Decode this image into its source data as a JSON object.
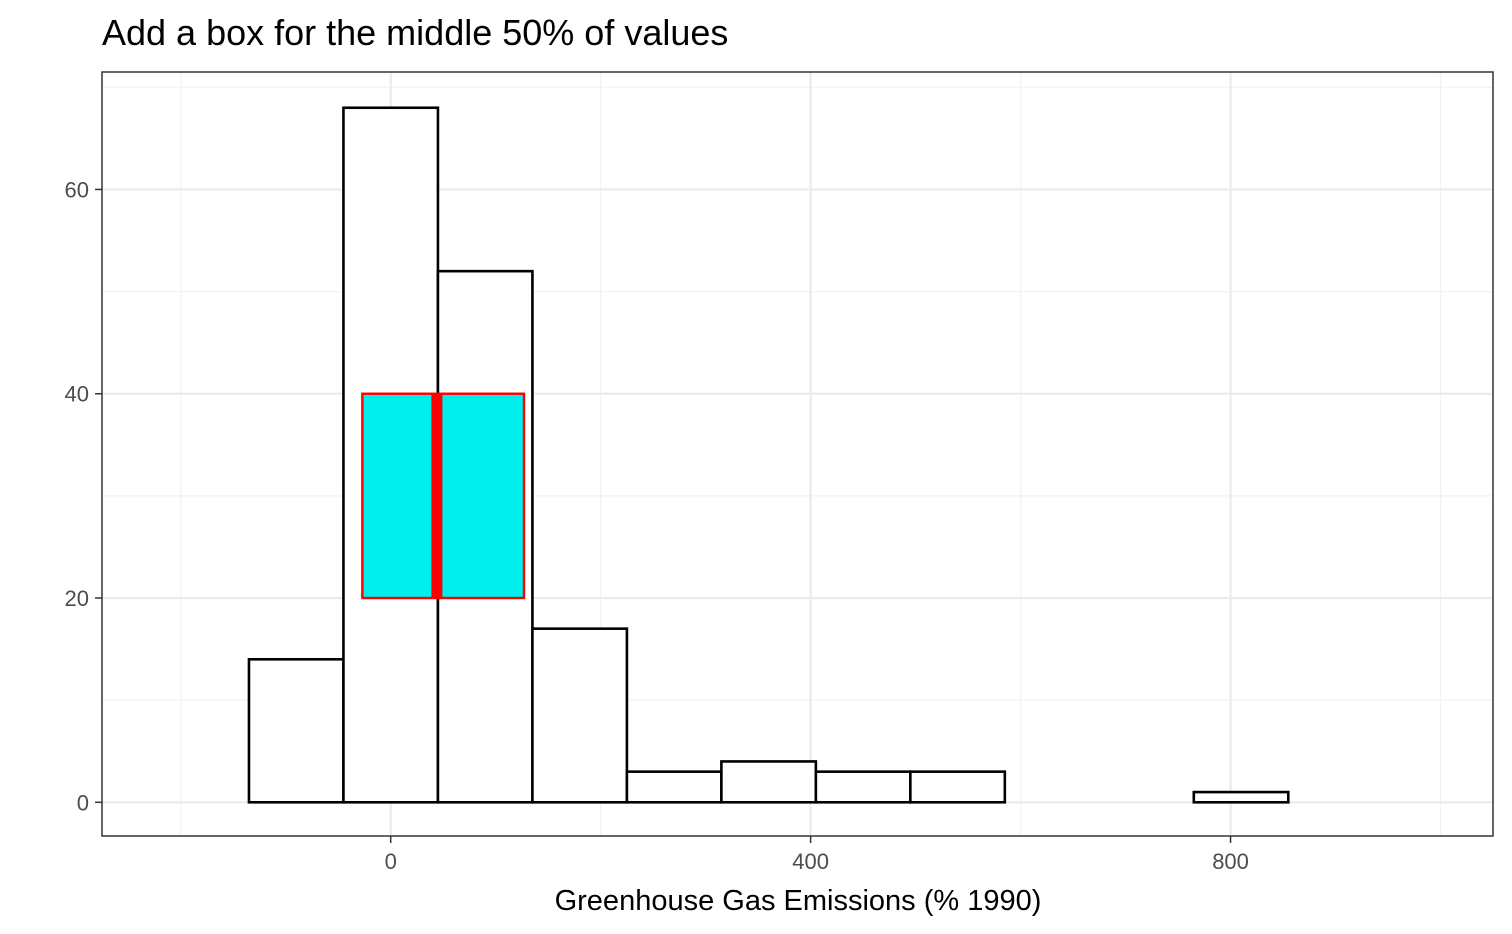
{
  "chart_data": {
    "type": "bar",
    "title": "Add a box for the middle 50% of values",
    "xlabel": "Greenhouse Gas Emissions (% 1990)",
    "ylabel": "",
    "xlim": [
      -275,
      1050
    ],
    "ylim": [
      -3.3,
      71.5
    ],
    "x_ticks": [
      0,
      400,
      800
    ],
    "x_tick_labels": [
      "0",
      "400",
      "800"
    ],
    "y_ticks": [
      0,
      20,
      40,
      60
    ],
    "y_tick_labels": [
      "0",
      "20",
      "40",
      "60"
    ],
    "grid": true,
    "legend": "none",
    "bins": [
      {
        "x0": -135,
        "x1": -45,
        "count": 14
      },
      {
        "x0": -45,
        "x1": 45,
        "count": 68
      },
      {
        "x0": 45,
        "x1": 135,
        "count": 52
      },
      {
        "x0": 135,
        "x1": 225,
        "count": 17
      },
      {
        "x0": 225,
        "x1": 315,
        "count": 3
      },
      {
        "x0": 315,
        "x1": 405,
        "count": 4
      },
      {
        "x0": 405,
        "x1": 495,
        "count": 3
      },
      {
        "x0": 495,
        "x1": 585,
        "count": 3
      },
      {
        "x0": 585,
        "x1": 675,
        "count": 0
      },
      {
        "x0": 675,
        "x1": 765,
        "count": 0
      },
      {
        "x0": 765,
        "x1": 855,
        "count": 1
      },
      {
        "x0": 855,
        "x1": 945,
        "count": 0
      },
      {
        "x0": 945,
        "x1": 1035,
        "count": 0
      },
      {
        "x0": 1035,
        "x1": 1125,
        "count": 0
      }
    ],
    "iqr_box": {
      "q1": -27,
      "median": 44,
      "q3": 127,
      "y_min": 20,
      "y_max": 40,
      "fill": "#00eeee",
      "stroke": "#ff0000"
    },
    "colors": {
      "bar_fill": "#ffffff",
      "bar_stroke": "#000000",
      "grid_major": "#ebebeb",
      "grid_minor": "#f2f2f2",
      "panel_border": "#333333"
    }
  }
}
